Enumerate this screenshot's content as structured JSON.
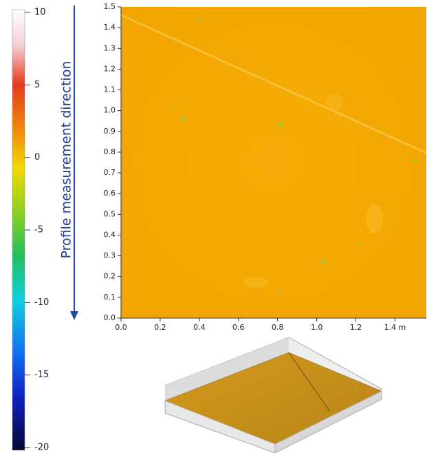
{
  "chart_data": [
    {
      "type": "colorbar",
      "ylim": [
        -20,
        10
      ],
      "yticks": [
        10,
        5,
        0,
        -5,
        -10,
        -15,
        -20
      ],
      "annotation": "Profile measurement direction"
    },
    {
      "type": "image",
      "xlim": [
        0,
        1.56
      ],
      "ylim": [
        0,
        1.5
      ],
      "xticks": [
        {
          "value": 0,
          "label": "0.0"
        },
        0.2,
        0.4,
        0.6,
        0.8,
        {
          "value": 1,
          "label": "1.0"
        },
        1.2,
        {
          "value": 1.4,
          "label": "1.4 m"
        }
      ],
      "yticks": [
        {
          "value": 0,
          "label": "0.0"
        },
        0.1,
        0.2,
        0.3,
        0.4,
        0.5,
        0.6,
        0.7,
        0.8,
        0.9,
        {
          "value": 1,
          "label": "1.0"
        },
        1.1,
        1.2,
        1.3,
        1.4,
        1.5
      ]
    }
  ]
}
